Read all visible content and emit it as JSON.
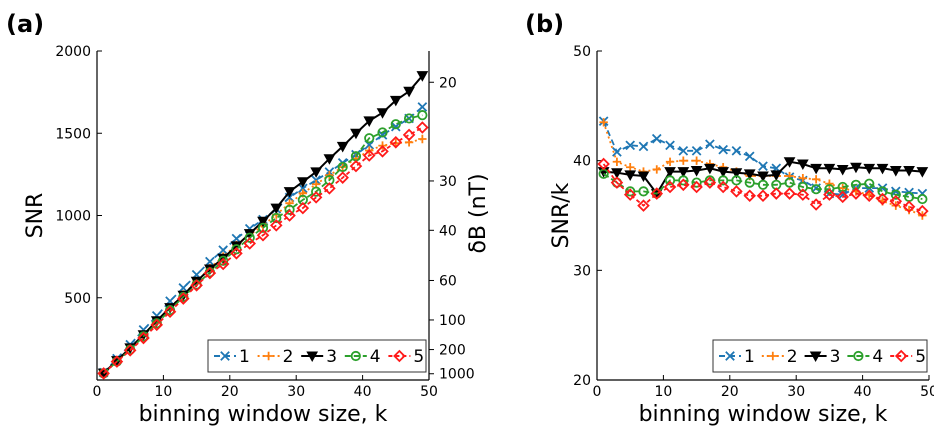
{
  "colors": {
    "1": "#1f77b4",
    "2": "#ff7f0e",
    "3": "#000000",
    "4": "#2ca02c",
    "5": "#ff1a1a"
  },
  "chart_data": [
    {
      "panel_label": "(a)",
      "type": "line",
      "xlabel": "binning window size, k",
      "ylabel": "SNR",
      "ylabel_right": "δB (nT)",
      "xlim": [
        0,
        50
      ],
      "ylim": [
        0,
        2000
      ],
      "xticks": [
        0,
        10,
        20,
        30,
        40,
        50
      ],
      "yticks": [
        500,
        1000,
        1500,
        2000
      ],
      "right_axis_ticks": [
        {
          "label": "20",
          "snr": 1810
        },
        {
          "label": "30",
          "snr": 1210
        },
        {
          "label": "40",
          "snr": 910
        },
        {
          "label": "60",
          "snr": 605
        },
        {
          "label": "100",
          "snr": 365
        },
        {
          "label": "200",
          "snr": 185
        },
        {
          "label": "1000",
          "snr": 38
        }
      ],
      "legend_position": "bottom-right",
      "x": [
        1,
        3,
        5,
        7,
        9,
        11,
        13,
        15,
        17,
        19,
        21,
        23,
        25,
        27,
        29,
        31,
        33,
        35,
        37,
        39,
        41,
        43,
        45,
        47,
        49
      ],
      "series": [
        {
          "name": "1",
          "values": [
            45,
            130,
            215,
            305,
            390,
            480,
            560,
            640,
            720,
            790,
            860,
            920,
            975,
            1040,
            1110,
            1165,
            1215,
            1265,
            1320,
            1370,
            1430,
            1490,
            1540,
            1590,
            1660
          ]
        },
        {
          "name": "2",
          "values": [
            40,
            115,
            190,
            275,
            355,
            440,
            520,
            600,
            680,
            750,
            820,
            880,
            940,
            1005,
            1075,
            1135,
            1190,
            1245,
            1295,
            1345,
            1395,
            1425,
            1440,
            1445,
            1465
          ]
        },
        {
          "name": "3",
          "values": [
            42,
            118,
            195,
            275,
            360,
            440,
            515,
            600,
            675,
            740,
            815,
            890,
            965,
            1045,
            1145,
            1205,
            1265,
            1345,
            1420,
            1500,
            1575,
            1625,
            1700,
            1755,
            1850
          ]
        },
        {
          "name": "4",
          "values": [
            40,
            112,
            185,
            265,
            345,
            425,
            505,
            580,
            655,
            725,
            795,
            865,
            925,
            985,
            1035,
            1095,
            1145,
            1215,
            1295,
            1360,
            1470,
            1505,
            1555,
            1590,
            1610
          ]
        },
        {
          "name": "5",
          "values": [
            40,
            112,
            180,
            255,
            335,
            415,
            495,
            575,
            650,
            705,
            770,
            830,
            880,
            940,
            1000,
            1045,
            1110,
            1165,
            1230,
            1300,
            1365,
            1390,
            1445,
            1490,
            1535
          ]
        }
      ]
    },
    {
      "panel_label": "(b)",
      "type": "line",
      "xlabel": "binning window size, k",
      "ylabel": "SNR/k",
      "xlim": [
        0,
        50
      ],
      "ylim": [
        20,
        50
      ],
      "xticks": [
        0,
        10,
        20,
        30,
        40,
        50
      ],
      "yticks": [
        20,
        30,
        40,
        50
      ],
      "legend_position": "bottom-right",
      "x": [
        1,
        3,
        5,
        7,
        9,
        11,
        13,
        15,
        17,
        19,
        21,
        23,
        25,
        27,
        29,
        31,
        33,
        35,
        37,
        39,
        41,
        43,
        45,
        47,
        49
      ],
      "series": [
        {
          "name": "1",
          "values": [
            43.6,
            40.8,
            41.4,
            41.3,
            42.0,
            41.4,
            40.9,
            40.9,
            41.5,
            41.0,
            40.9,
            40.4,
            39.5,
            39.3,
            38.5,
            38.2,
            37.5,
            37.0,
            36.9,
            37.5,
            37.5,
            37.5,
            37.2,
            37.1,
            37.0
          ]
        },
        {
          "name": "2",
          "values": [
            43.5,
            39.9,
            39.4,
            39.0,
            39.2,
            39.9,
            40.0,
            40.0,
            39.7,
            39.4,
            39.0,
            38.6,
            38.6,
            38.6,
            38.6,
            38.4,
            38.3,
            37.9,
            37.5,
            37.2,
            36.9,
            36.3,
            35.9,
            35.5,
            35.0
          ]
        },
        {
          "name": "3",
          "values": [
            39.0,
            38.9,
            38.7,
            38.6,
            37.0,
            39.0,
            39.0,
            39.1,
            39.3,
            39.0,
            38.9,
            38.8,
            38.6,
            38.7,
            39.9,
            39.7,
            39.3,
            39.3,
            39.2,
            39.4,
            39.3,
            39.3,
            39.1,
            39.1,
            39.0
          ]
        },
        {
          "name": "4",
          "values": [
            38.8,
            38.0,
            37.2,
            37.2,
            37.0,
            38.2,
            38.2,
            38.0,
            38.2,
            38.2,
            38.2,
            38.0,
            37.8,
            37.8,
            38.0,
            37.6,
            37.4,
            37.4,
            37.6,
            37.8,
            37.9,
            37.2,
            36.9,
            36.7,
            36.5
          ]
        },
        {
          "name": "5",
          "values": [
            39.7,
            38.0,
            36.9,
            35.9,
            37.0,
            37.6,
            37.8,
            37.6,
            38.0,
            37.6,
            37.2,
            36.8,
            36.8,
            37.0,
            37.0,
            36.9,
            36.0,
            36.9,
            36.7,
            37.0,
            36.8,
            36.5,
            36.3,
            35.8,
            35.4
          ]
        }
      ]
    }
  ]
}
